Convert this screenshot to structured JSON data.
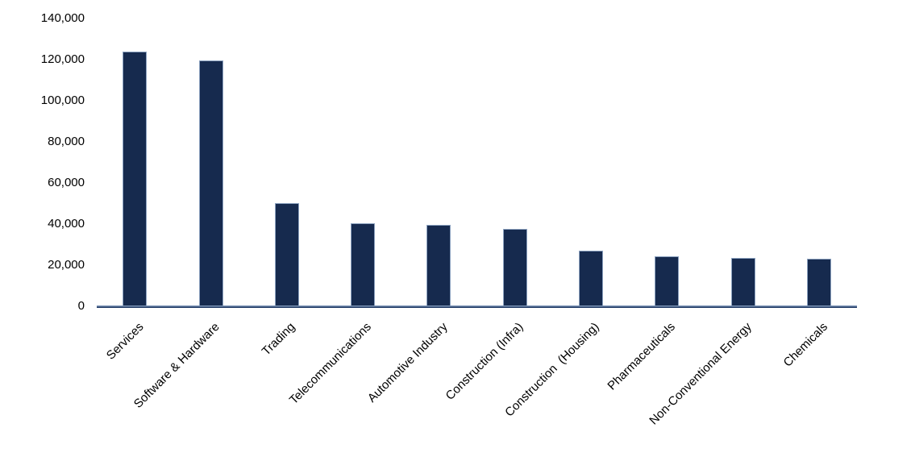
{
  "chart_data": {
    "type": "bar",
    "title": "",
    "xlabel": "",
    "ylabel": "",
    "categories": [
      "Services",
      "Software & Hardware",
      "Trading",
      "Telecommunications",
      "Automotive Industry",
      "Construction (Infra)",
      "Construction  (Housing)",
      "Pharmaceuticals",
      "Non-Conventional Energy",
      "Chemicals"
    ],
    "values": [
      124000,
      119500,
      50300,
      40400,
      39500,
      37800,
      27000,
      24200,
      23600,
      23300
    ],
    "ylim": [
      0,
      140000
    ],
    "ytick_interval": 20000,
    "ytick_labels": [
      "0",
      "20,000",
      "40,000",
      "60,000",
      "80,000",
      "100,000",
      "120,000",
      "140,000"
    ],
    "grid": false,
    "legend": null,
    "colors": {
      "bar_fill": "#162a4e",
      "bar_border": "#8ca2c0",
      "axis_line_top": "#7d94b5",
      "axis_line_bottom": "#1f3864",
      "text": "#000000",
      "background": "#ffffff"
    }
  }
}
